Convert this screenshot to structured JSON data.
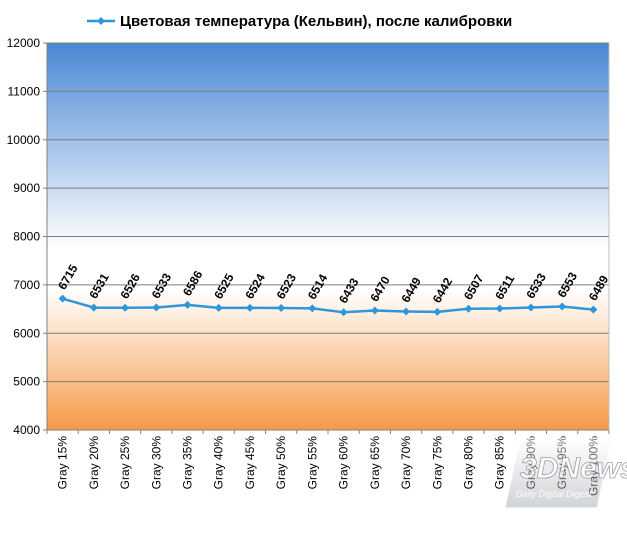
{
  "chart_data": {
    "type": "line",
    "title": "",
    "xlabel": "",
    "ylabel": "",
    "ylim": [
      4000,
      12000
    ],
    "ytick_step": 1000,
    "grid": true,
    "legend_position": "top-center",
    "categories": [
      "Gray 15%",
      "Gray 20%",
      "Gray 25%",
      "Gray 30%",
      "Gray 35%",
      "Gray 40%",
      "Gray 45%",
      "Gray 50%",
      "Gray 55%",
      "Gray 60%",
      "Gray 65%",
      "Gray 70%",
      "Gray 75%",
      "Gray 80%",
      "Gray 85%",
      "Gray 90%",
      "Gray 95%",
      "Gray 100%"
    ],
    "series": [
      {
        "name": "Цветовая температура (Кельвин), после калибровки",
        "values": [
          6715,
          6531,
          6526,
          6533,
          6586,
          6525,
          6524,
          6523,
          6514,
          6433,
          6470,
          6449,
          6442,
          6507,
          6511,
          6533,
          6553,
          6489
        ],
        "color": "#2f97d7"
      }
    ]
  },
  "watermark": {
    "logo_text": "3DNews",
    "tagline": "Daily Digital Digest"
  },
  "colors": {
    "plot_top": "#4a88d4",
    "plot_mid": "#ffffff",
    "plot_bottom": "#f59a47",
    "gridline": "#7f7f7f",
    "series_line": "#2f97d7"
  }
}
